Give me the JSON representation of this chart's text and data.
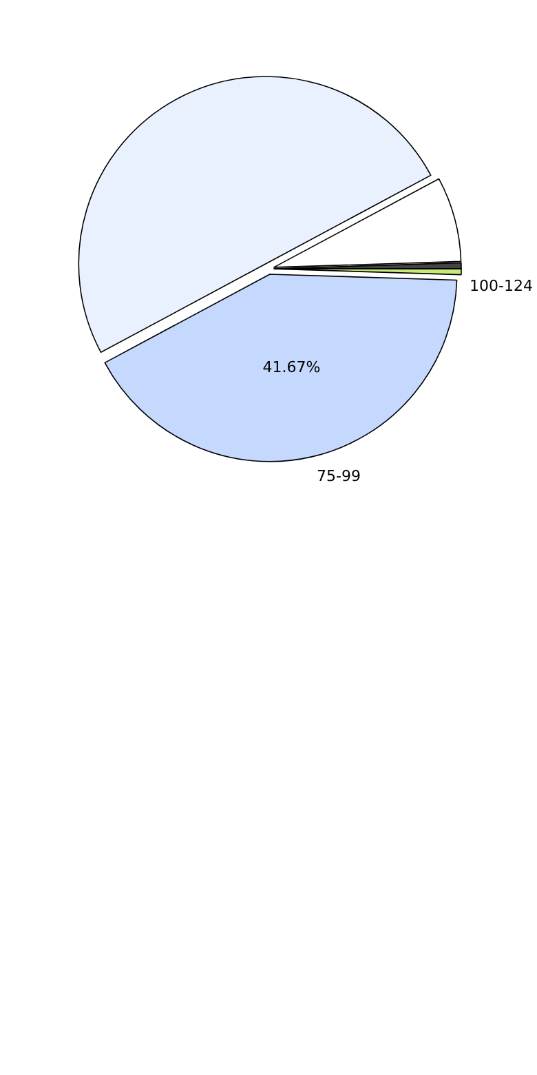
{
  "chart_data": {
    "type": "pie",
    "categories": [
      "100-124",
      "75-99",
      null,
      null,
      null
    ],
    "values": [
      0.5,
      41.67,
      50,
      7.33,
      0.5
    ],
    "colors": [
      "#c8e87a",
      "#c5d9fe",
      "#eaf1fe",
      "#ffffff",
      "#444444"
    ],
    "value_labels": [
      null,
      "41.67%",
      null,
      null,
      null
    ],
    "legend": false
  }
}
